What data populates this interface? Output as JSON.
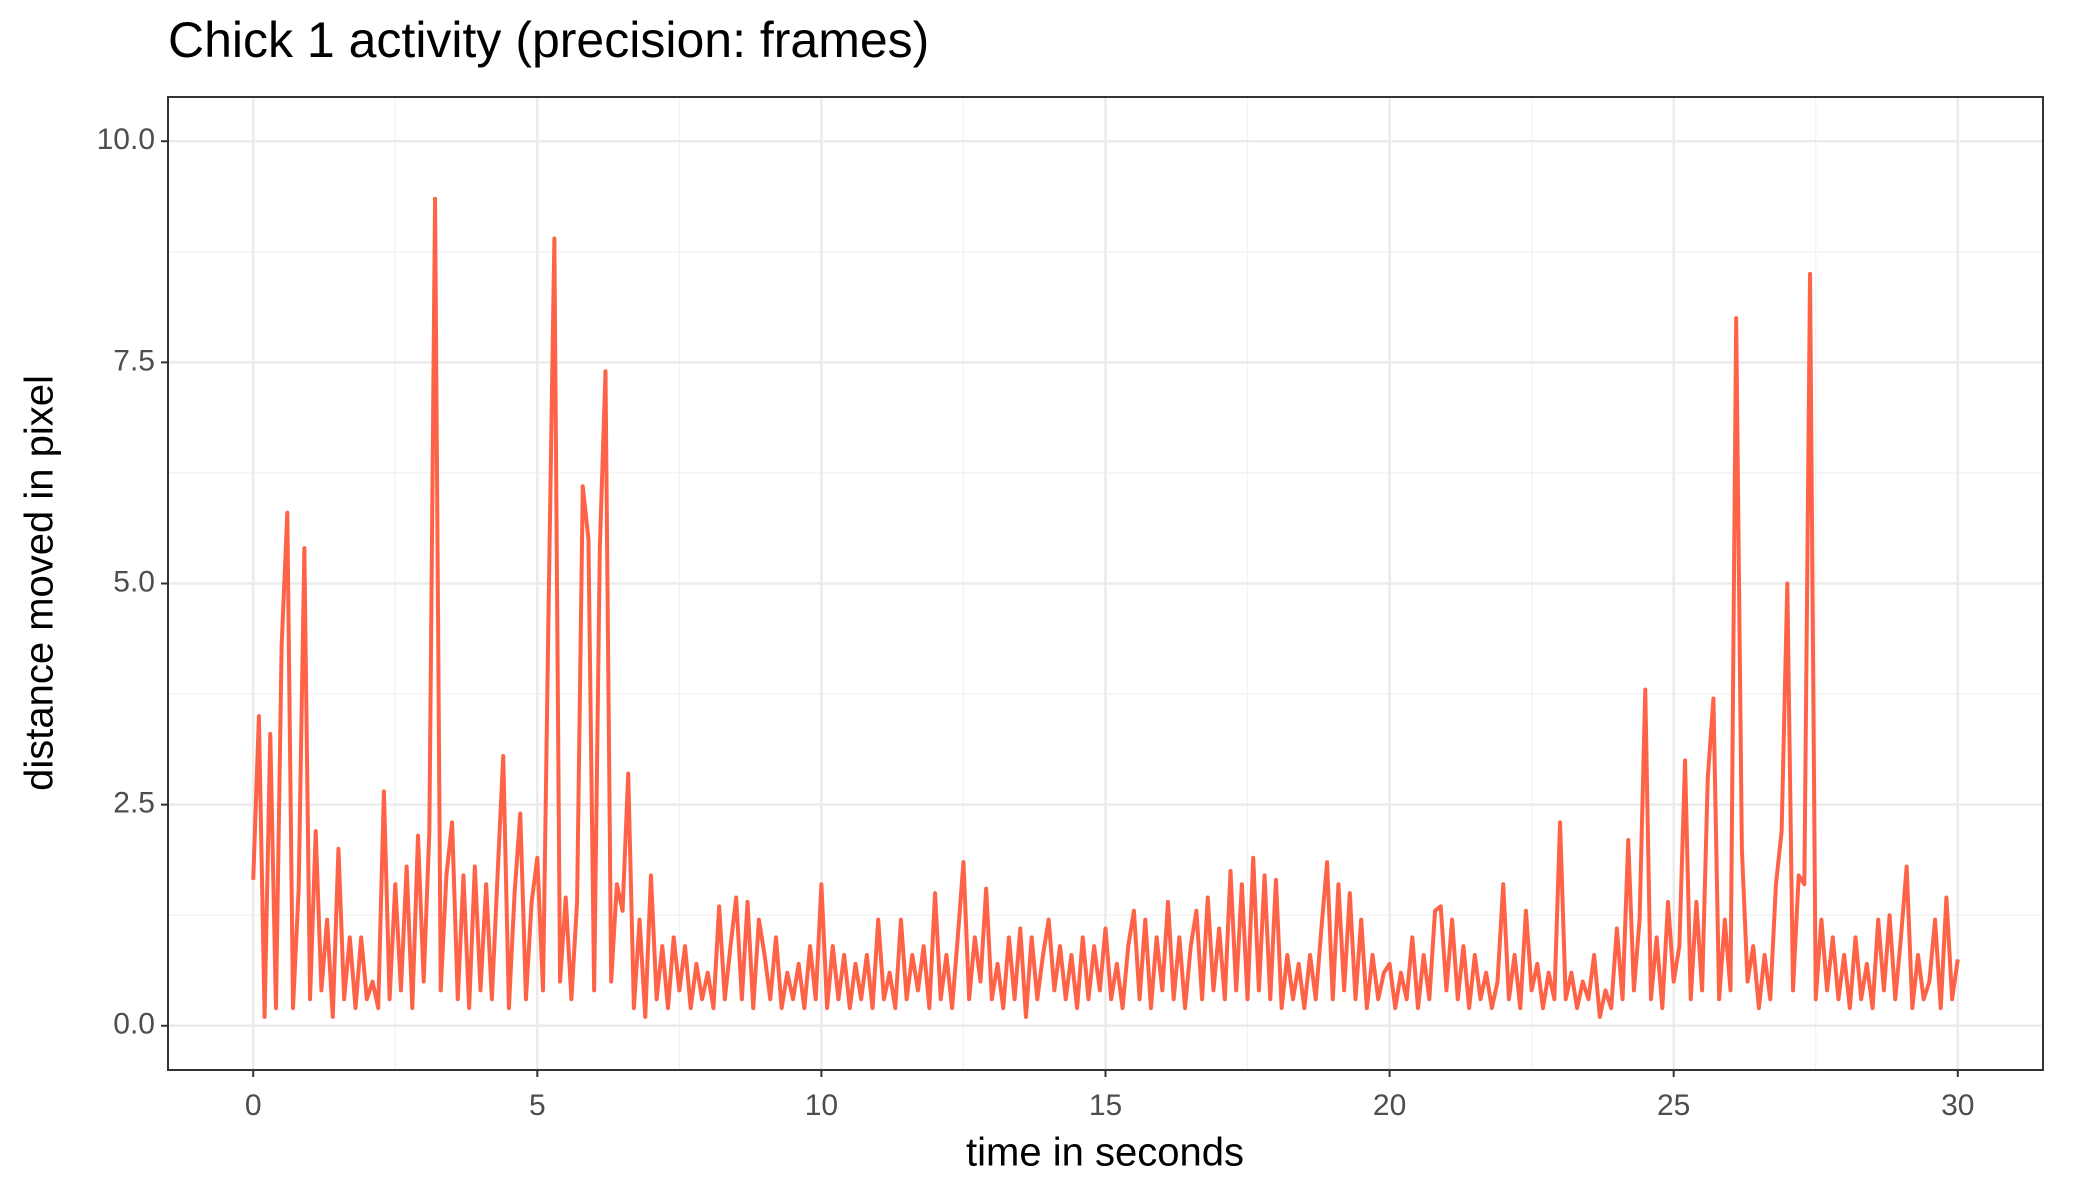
{
  "chart_data": {
    "type": "line",
    "title": "Chick 1 activity (precision: frames)",
    "xlabel": "time in seconds",
    "ylabel": "distance moved in pixel",
    "xlim": [
      -1.5,
      31.5
    ],
    "ylim": [
      -0.5,
      10.5
    ],
    "xticks": [
      0,
      5,
      10,
      15,
      20,
      25,
      30
    ],
    "yticks": [
      {
        "value": 0,
        "label": "0.0"
      },
      {
        "value": 2.5,
        "label": "2.5"
      },
      {
        "value": 5,
        "label": "5.0"
      },
      {
        "value": 7.5,
        "label": "7.5"
      },
      {
        "value": 10,
        "label": "10.0"
      }
    ],
    "xminor_ticks": [
      2.5,
      7.5,
      12.5,
      17.5,
      22.5,
      27.5
    ],
    "yminor_ticks": [
      1.25,
      3.75,
      6.25,
      8.75
    ],
    "grid": true,
    "x": [
      0,
      0.1,
      0.2,
      0.3,
      0.4,
      0.5,
      0.6,
      0.7,
      0.8,
      0.9,
      1,
      1.1,
      1.2,
      1.3,
      1.4,
      1.5,
      1.6,
      1.7,
      1.8,
      1.9,
      2,
      2.1,
      2.2,
      2.3,
      2.4,
      2.5,
      2.6,
      2.7,
      2.8,
      2.9,
      3,
      3.1,
      3.2,
      3.3,
      3.4,
      3.5,
      3.6,
      3.7,
      3.8,
      3.9,
      4,
      4.1,
      4.2,
      4.3,
      4.4,
      4.5,
      4.6,
      4.7,
      4.8,
      4.9,
      5,
      5.1,
      5.2,
      5.3,
      5.4,
      5.5,
      5.6,
      5.7,
      5.8,
      5.9,
      6,
      6.1,
      6.2,
      6.3,
      6.4,
      6.5,
      6.6,
      6.7,
      6.8,
      6.9,
      7,
      7.1,
      7.2,
      7.3,
      7.4,
      7.5,
      7.6,
      7.7,
      7.8,
      7.9,
      8,
      8.1,
      8.2,
      8.3,
      8.4,
      8.5,
      8.6,
      8.7,
      8.8,
      8.9,
      9,
      9.1,
      9.2,
      9.3,
      9.4,
      9.5,
      9.6,
      9.7,
      9.8,
      9.9,
      10,
      10.1,
      10.2,
      10.3,
      10.4,
      10.5,
      10.6,
      10.7,
      10.8,
      10.9,
      11,
      11.1,
      11.2,
      11.3,
      11.4,
      11.5,
      11.6,
      11.7,
      11.8,
      11.9,
      12,
      12.1,
      12.2,
      12.3,
      12.4,
      12.5,
      12.6,
      12.7,
      12.8,
      12.9,
      13,
      13.1,
      13.2,
      13.3,
      13.4,
      13.5,
      13.6,
      13.7,
      13.8,
      13.9,
      14,
      14.1,
      14.2,
      14.3,
      14.4,
      14.5,
      14.6,
      14.7,
      14.8,
      14.9,
      15,
      15.1,
      15.2,
      15.3,
      15.4,
      15.5,
      15.6,
      15.7,
      15.8,
      15.9,
      16,
      16.1,
      16.2,
      16.3,
      16.4,
      16.5,
      16.6,
      16.7,
      16.8,
      16.9,
      17,
      17.1,
      17.2,
      17.3,
      17.4,
      17.5,
      17.6,
      17.7,
      17.8,
      17.9,
      18,
      18.1,
      18.2,
      18.3,
      18.4,
      18.5,
      18.6,
      18.7,
      18.8,
      18.9,
      19,
      19.1,
      19.2,
      19.3,
      19.4,
      19.5,
      19.6,
      19.7,
      19.8,
      19.9,
      20,
      20.1,
      20.2,
      20.3,
      20.4,
      20.5,
      20.6,
      20.7,
      20.8,
      20.9,
      21,
      21.1,
      21.2,
      21.3,
      21.4,
      21.5,
      21.6,
      21.7,
      21.8,
      21.9,
      22,
      22.1,
      22.2,
      22.3,
      22.4,
      22.5,
      22.6,
      22.7,
      22.8,
      22.9,
      23,
      23.1,
      23.2,
      23.3,
      23.4,
      23.5,
      23.6,
      23.7,
      23.8,
      23.9,
      24,
      24.1,
      24.2,
      24.3,
      24.4,
      24.5,
      24.6,
      24.7,
      24.8,
      24.9,
      25,
      25.1,
      25.2,
      25.3,
      25.4,
      25.5,
      25.6,
      25.7,
      25.8,
      25.9,
      26,
      26.1,
      26.2,
      26.3,
      26.4,
      26.5,
      26.6,
      26.7,
      26.8,
      26.9,
      27,
      27.1,
      27.2,
      27.3,
      27.4,
      27.5,
      27.6,
      27.7,
      27.8,
      27.9,
      28,
      28.1,
      28.2,
      28.3,
      28.4,
      28.5,
      28.6,
      28.7,
      28.8,
      28.9,
      29,
      29.1,
      29.2,
      29.3,
      29.4,
      29.5,
      29.6,
      29.7,
      29.8,
      29.9,
      30
    ],
    "series": [
      {
        "color": "#ff6347",
        "values": [
          1.65,
          3.5,
          0.1,
          3.3,
          0.2,
          4.3,
          5.8,
          0.2,
          1.55,
          5.4,
          0.3,
          2.2,
          0.4,
          1.2,
          0.1,
          2.0,
          0.3,
          1.0,
          0.2,
          1.0,
          0.3,
          0.5,
          0.2,
          2.65,
          0.3,
          1.6,
          0.4,
          1.8,
          0.2,
          2.15,
          0.5,
          2.2,
          9.35,
          0.4,
          1.7,
          2.3,
          0.3,
          1.7,
          0.2,
          1.8,
          0.4,
          1.6,
          0.3,
          1.7,
          3.05,
          0.2,
          1.5,
          2.4,
          0.3,
          1.4,
          1.9,
          0.4,
          4.8,
          8.9,
          0.5,
          1.45,
          0.3,
          1.4,
          6.1,
          5.5,
          0.4,
          5.4,
          7.4,
          0.5,
          1.6,
          1.3,
          2.85,
          0.2,
          1.2,
          0.1,
          1.7,
          0.3,
          0.9,
          0.2,
          1.0,
          0.4,
          0.9,
          0.2,
          0.7,
          0.3,
          0.6,
          0.2,
          1.35,
          0.3,
          0.9,
          1.45,
          0.3,
          1.4,
          0.2,
          1.2,
          0.8,
          0.3,
          1.0,
          0.2,
          0.6,
          0.3,
          0.7,
          0.2,
          0.9,
          0.3,
          1.6,
          0.2,
          0.9,
          0.3,
          0.8,
          0.2,
          0.7,
          0.3,
          0.8,
          0.2,
          1.2,
          0.3,
          0.6,
          0.2,
          1.2,
          0.3,
          0.8,
          0.4,
          0.9,
          0.2,
          1.5,
          0.3,
          0.8,
          0.2,
          1.0,
          1.85,
          0.3,
          1.0,
          0.5,
          1.55,
          0.3,
          0.7,
          0.2,
          1.0,
          0.3,
          1.1,
          0.1,
          1.0,
          0.3,
          0.8,
          1.2,
          0.4,
          0.9,
          0.3,
          0.8,
          0.2,
          1.0,
          0.3,
          0.9,
          0.4,
          1.1,
          0.3,
          0.7,
          0.2,
          0.9,
          1.3,
          0.3,
          1.2,
          0.2,
          1.0,
          0.4,
          1.4,
          0.3,
          1.0,
          0.2,
          0.9,
          1.3,
          0.3,
          1.45,
          0.4,
          1.1,
          0.3,
          1.75,
          0.4,
          1.6,
          0.3,
          1.9,
          0.4,
          1.7,
          0.3,
          1.65,
          0.2,
          0.8,
          0.3,
          0.7,
          0.2,
          0.8,
          0.3,
          1.1,
          1.85,
          0.3,
          1.6,
          0.4,
          1.5,
          0.3,
          1.2,
          0.2,
          0.8,
          0.3,
          0.6,
          0.7,
          0.2,
          0.6,
          0.3,
          1.0,
          0.2,
          0.8,
          0.3,
          1.3,
          1.35,
          0.4,
          1.2,
          0.3,
          0.9,
          0.2,
          0.8,
          0.3,
          0.6,
          0.2,
          0.5,
          1.6,
          0.3,
          0.8,
          0.2,
          1.3,
          0.4,
          0.7,
          0.2,
          0.6,
          0.3,
          2.3,
          0.3,
          0.6,
          0.2,
          0.5,
          0.3,
          0.8,
          0.1,
          0.4,
          0.2,
          1.1,
          0.3,
          2.1,
          0.4,
          1.2,
          3.8,
          0.3,
          1.0,
          0.2,
          1.4,
          0.5,
          0.9,
          3.0,
          0.3,
          1.4,
          0.4,
          2.8,
          3.7,
          0.3,
          1.2,
          0.4,
          8.0,
          2.0,
          0.5,
          0.9,
          0.2,
          0.8,
          0.3,
          1.6,
          2.2,
          5.0,
          0.4,
          1.7,
          1.6,
          8.5,
          0.3,
          1.2,
          0.4,
          1.0,
          0.3,
          0.8,
          0.2,
          1.0,
          0.3,
          0.7,
          0.2,
          1.2,
          0.4,
          1.25,
          0.3,
          1.0,
          1.8,
          0.2,
          0.8,
          0.3,
          0.5,
          1.2,
          0.2,
          1.45,
          0.3,
          0.75
        ]
      }
    ]
  }
}
